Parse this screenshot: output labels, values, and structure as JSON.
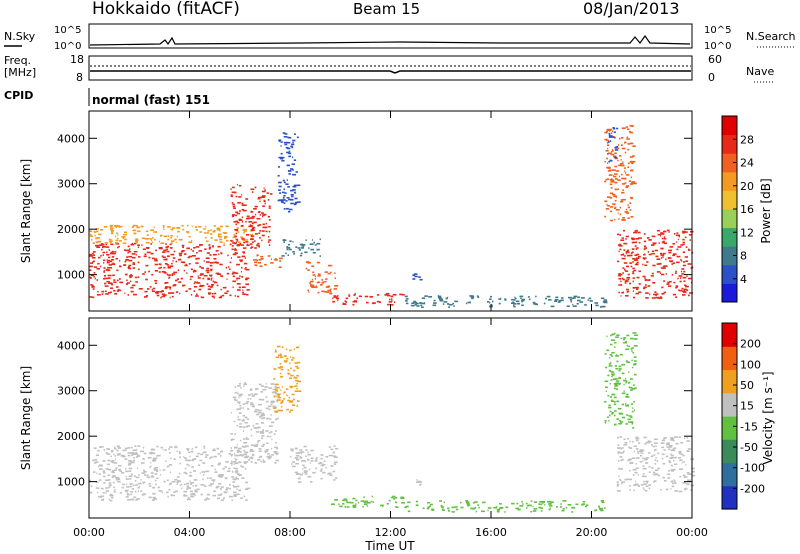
{
  "header": {
    "station": "Hokkaido (fitACF)",
    "beam": "Beam 15",
    "date": "08/Jan/2013"
  },
  "noise_panel": {
    "left_label": "N.Sky",
    "right_label": "N.Search",
    "tick_top": "10^5",
    "tick_bottom": "10^0"
  },
  "freq_panel": {
    "left_label_1": "Freq.",
    "left_label_2": "[MHz]",
    "right_label": "Nave",
    "left_ticks": [
      "18",
      "8"
    ],
    "right_ticks": [
      "60",
      "0"
    ]
  },
  "cpid": {
    "label": "CPID",
    "value": "normal (fast) 151"
  },
  "colors": {
    "background": "#ffffff",
    "ground_scatter_gray": "#c0c0c0"
  },
  "chart_data": [
    {
      "type": "heatmap",
      "name": "power",
      "ylabel": "Slant Range [km]",
      "xlabel": "Time UT",
      "xticks": [
        "00:00",
        "04:00",
        "08:00",
        "12:00",
        "16:00",
        "20:00",
        "00:00"
      ],
      "yticks": [
        "1000",
        "2000",
        "3000",
        "4000"
      ],
      "xlim": [
        0,
        24
      ],
      "ylim": [
        200,
        4600
      ],
      "colorbar": {
        "label": "Power [dB]",
        "ticks": [
          "4",
          "8",
          "12",
          "16",
          "20",
          "24",
          "28"
        ],
        "range": [
          0,
          32
        ],
        "colors": [
          "#1a1adc",
          "#2b50c8",
          "#3f7a8c",
          "#3aa86a",
          "#9ad05a",
          "#f0c030",
          "#f59a20",
          "#f06020",
          "#e82818",
          "#e00000"
        ]
      },
      "regions": [
        {
          "t0": 0.0,
          "t1": 6.3,
          "r0": 500,
          "r1": 1700,
          "color": "#e82818"
        },
        {
          "t0": 0.0,
          "t1": 6.5,
          "r0": 1700,
          "r1": 2100,
          "color": "#f59a20"
        },
        {
          "t0": 5.6,
          "t1": 7.2,
          "r0": 1600,
          "r1": 3000,
          "color": "#e82818"
        },
        {
          "t0": 6.5,
          "t1": 7.6,
          "r0": 1150,
          "r1": 1450,
          "color": "#f06020"
        },
        {
          "t0": 7.5,
          "t1": 8.3,
          "r0": 2400,
          "r1": 4200,
          "color": "#2b50c8"
        },
        {
          "t0": 7.6,
          "t1": 9.2,
          "r0": 1400,
          "r1": 1800,
          "color": "#3f7a8c"
        },
        {
          "t0": 8.6,
          "t1": 9.8,
          "r0": 600,
          "r1": 1300,
          "color": "#f06020"
        },
        {
          "t0": 9.6,
          "t1": 12.5,
          "r0": 350,
          "r1": 600,
          "color": "#e82818"
        },
        {
          "t0": 12.5,
          "t1": 20.5,
          "r0": 300,
          "r1": 550,
          "color": "#3f7a8c"
        },
        {
          "t0": 12.8,
          "t1": 13.2,
          "r0": 900,
          "r1": 1100,
          "color": "#2b50c8"
        },
        {
          "t0": 20.5,
          "t1": 21.7,
          "r0": 2200,
          "r1": 4300,
          "color": "#f06020"
        },
        {
          "t0": 21.0,
          "t1": 24.0,
          "r0": 500,
          "r1": 2000,
          "color": "#e82818"
        },
        {
          "t0": 20.6,
          "t1": 21.0,
          "r0": 3500,
          "r1": 4300,
          "color": "#2b50c8"
        }
      ]
    },
    {
      "type": "heatmap",
      "name": "velocity",
      "ylabel": "Slant Range [km]",
      "xlabel": "Time UT",
      "xticks": [
        "00:00",
        "04:00",
        "08:00",
        "12:00",
        "16:00",
        "20:00",
        "00:00"
      ],
      "yticks": [
        "1000",
        "2000",
        "3000",
        "4000"
      ],
      "xlim": [
        0,
        24
      ],
      "ylim": [
        200,
        4600
      ],
      "colorbar": {
        "label": "Velocity [m s⁻¹]",
        "ticks": [
          "200",
          "100",
          "50",
          "15",
          "-15",
          "-50",
          "-100",
          "-200"
        ],
        "range": [
          -250,
          250
        ],
        "colors": [
          "#2030c0",
          "#2f6fa0",
          "#3a8a5a",
          "#60c040",
          "#c0c0c0",
          "#f0a020",
          "#f06010",
          "#e00000"
        ]
      },
      "regions": [
        {
          "t0": 0.0,
          "t1": 6.3,
          "r0": 600,
          "r1": 1800,
          "color": "#c0c0c0"
        },
        {
          "t0": 5.6,
          "t1": 7.5,
          "r0": 1400,
          "r1": 3200,
          "color": "#c0c0c0"
        },
        {
          "t0": 7.3,
          "t1": 8.3,
          "r0": 2500,
          "r1": 4000,
          "color": "#f0a020"
        },
        {
          "t0": 8.0,
          "t1": 9.8,
          "r0": 1000,
          "r1": 1800,
          "color": "#c0c0c0"
        },
        {
          "t0": 9.6,
          "t1": 12.5,
          "r0": 450,
          "r1": 700,
          "color": "#60c040"
        },
        {
          "t0": 12.5,
          "t1": 20.5,
          "r0": 350,
          "r1": 600,
          "color": "#60c040"
        },
        {
          "t0": 12.8,
          "t1": 13.2,
          "r0": 900,
          "r1": 1100,
          "color": "#c0c0c0"
        },
        {
          "t0": 20.5,
          "t1": 21.7,
          "r0": 2200,
          "r1": 4300,
          "color": "#60c040"
        },
        {
          "t0": 21.0,
          "t1": 24.0,
          "r0": 800,
          "r1": 2000,
          "color": "#c0c0c0"
        }
      ]
    }
  ]
}
